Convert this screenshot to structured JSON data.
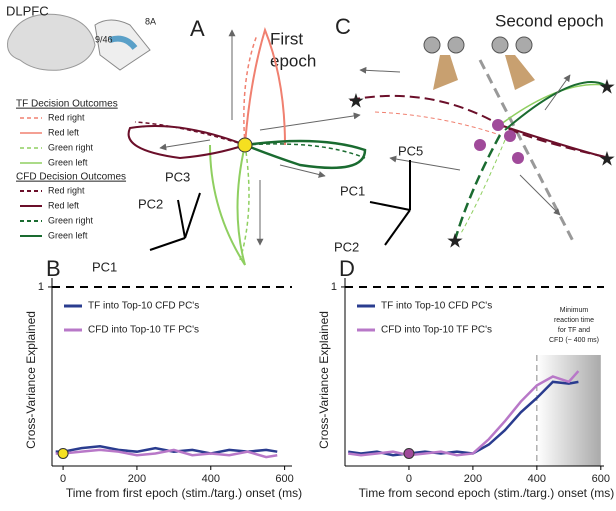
{
  "panel_a": {
    "letter": "A",
    "title_lines": [
      "First",
      "epoch"
    ],
    "region": "DLPFC",
    "brain_labels": [
      "8A",
      "9/46"
    ],
    "tf_title": "TF Decision Outcomes",
    "tf_items": [
      "Red right",
      "Red left",
      "Green right",
      "Green left"
    ],
    "cfd_title": "CFD Decision Outcomes",
    "cfd_items": [
      "Red right",
      "Red left",
      "Green right",
      "Green left"
    ],
    "axes": [
      "PC3",
      "PC2",
      "PC1"
    ]
  },
  "panel_c": {
    "letter": "C",
    "title": "Second epoch",
    "axes": [
      "PC5",
      "PC1",
      "PC2"
    ]
  },
  "chart_data": [
    {
      "type": "line",
      "letter": "B",
      "xlabel": "Time from first epoch (stim./targ.) onset (ms)",
      "ylabel": "Cross-Variance Explained",
      "xlim": [
        -30,
        620
      ],
      "ylim": [
        0,
        1.05
      ],
      "xticks": [
        0,
        200,
        400,
        600
      ],
      "yticks": [
        1
      ],
      "grid": true,
      "x": [
        -20,
        0,
        50,
        100,
        150,
        200,
        250,
        300,
        350,
        400,
        450,
        500,
        550,
        580
      ],
      "series": [
        {
          "name": "TF into Top-10 CFD PC's",
          "color": "#2a3c8f",
          "values": [
            0.08,
            0.08,
            0.1,
            0.11,
            0.09,
            0.08,
            0.1,
            0.08,
            0.09,
            0.07,
            0.09,
            0.08,
            0.09,
            0.08
          ]
        },
        {
          "name": "CFD into Top-10 TF PC's",
          "color": "#b878c8",
          "values": [
            0.07,
            0.07,
            0.08,
            0.09,
            0.08,
            0.06,
            0.07,
            0.09,
            0.06,
            0.07,
            0.06,
            0.08,
            0.05,
            0.06
          ]
        }
      ],
      "marker": {
        "x": 0,
        "y": 0.07,
        "color": "#f5e020"
      }
    },
    {
      "type": "line",
      "letter": "D",
      "xlabel": "Time from second epoch (stim./targ.) onset (ms)",
      "ylabel": "Cross-Variance Explained",
      "xlim": [
        -200,
        610
      ],
      "ylim": [
        0,
        1.05
      ],
      "xticks": [
        0,
        200,
        400,
        600
      ],
      "yticks": [
        1
      ],
      "grid": true,
      "x": [
        -190,
        -150,
        -100,
        -50,
        0,
        50,
        100,
        150,
        200,
        250,
        300,
        350,
        400,
        450,
        500,
        530
      ],
      "series": [
        {
          "name": "TF into Top-10 CFD PC's",
          "color": "#2a3c8f",
          "values": [
            0.08,
            0.07,
            0.08,
            0.06,
            0.07,
            0.08,
            0.07,
            0.08,
            0.07,
            0.12,
            0.2,
            0.3,
            0.38,
            0.47,
            0.46,
            0.47
          ]
        },
        {
          "name": "CFD into Top-10 TF PC's",
          "color": "#b878c8",
          "values": [
            0.07,
            0.06,
            0.07,
            0.08,
            0.06,
            0.07,
            0.08,
            0.06,
            0.07,
            0.15,
            0.25,
            0.36,
            0.45,
            0.5,
            0.47,
            0.53
          ]
        }
      ],
      "marker": {
        "x": 0,
        "y": 0.07,
        "color": "#a04a9a"
      },
      "vline": 400,
      "shade": [
        400,
        600
      ],
      "annotation": [
        "Minimum",
        "reaction time",
        "for TF and",
        "CFD (~ 400 ms)"
      ]
    }
  ]
}
